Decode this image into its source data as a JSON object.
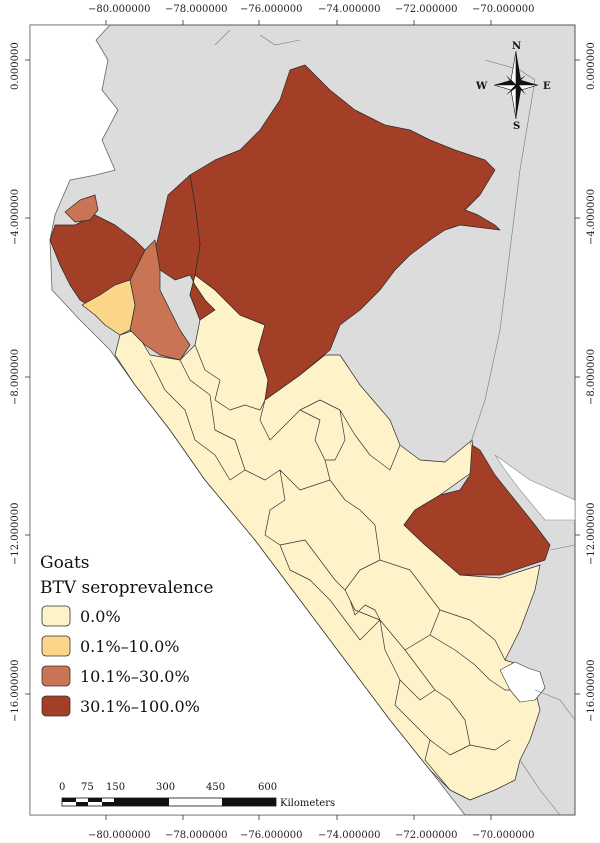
{
  "map": {
    "axes": {
      "top_ticks": [
        "−80.000000",
        "−78.000000",
        "−76.000000",
        "−74.000000",
        "−72.000000",
        "−70.000000"
      ],
      "bottom_ticks": [
        "−80.000000",
        "−78.000000",
        "−76.000000",
        "−74.000000",
        "−72.000000",
        "−70.000000"
      ],
      "left_ticks": [
        "0.000000",
        "−4.000000",
        "−8.000000",
        "−12.000000",
        "−16.000000"
      ],
      "right_ticks": [
        "0.000000",
        "−4.000000",
        "−8.000000",
        "−12.000000",
        "−16.000000"
      ]
    },
    "legend": {
      "title_line1": "Goats",
      "title_line2": "BTV seroprevalence",
      "items": [
        {
          "label": "0.0%",
          "color": "#fef2c8"
        },
        {
          "label": "0.1%–10.0%",
          "color": "#fbd68a"
        },
        {
          "label": "10.1%–30.0%",
          "color": "#c87455"
        },
        {
          "label": "30.1%–100.0%",
          "color": "#a33e27"
        }
      ]
    },
    "compass": {
      "n": "N",
      "s": "S",
      "e": "E",
      "w": "W"
    },
    "scale_bar": {
      "labels": [
        "0",
        "75",
        "150",
        "300",
        "450",
        "600"
      ],
      "unit": "Kilometers"
    },
    "colors": {
      "background_land": "#dcdcdc",
      "frame_bg": "#ffffff",
      "class_0": "#fef2c8",
      "class_1": "#fbd68a",
      "class_2": "#c87455",
      "class_3": "#a33e27",
      "border": "#333333"
    }
  }
}
